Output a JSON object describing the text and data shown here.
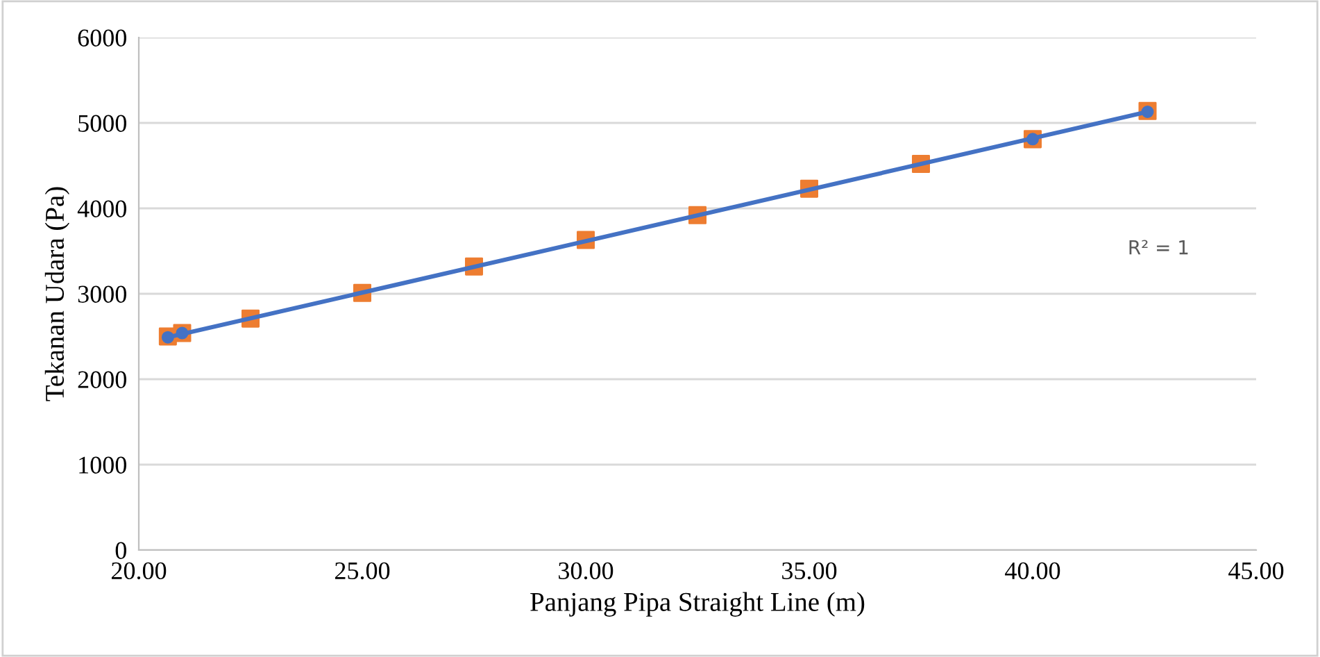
{
  "chart_data": {
    "type": "scatter",
    "xlabel": "Panjang Pipa Straight Line (m)",
    "ylabel": "Tekanan Udara (Pa)",
    "annotations": [
      "R² = 1"
    ],
    "series": [
      {
        "marker": "square",
        "color": "#ed7d31",
        "x": [
          20.65,
          20.97,
          22.5,
          25,
          27.5,
          30,
          32.5,
          35,
          37.5,
          40,
          42.57
        ],
        "values": [
          2500,
          2540,
          2710,
          3010,
          3320,
          3630,
          3920,
          4230,
          4520,
          4810,
          5140
        ]
      },
      {
        "marker": "circle",
        "color": "#4472c4",
        "x": [
          20.65,
          20.97,
          40,
          42.57
        ],
        "values": [
          2490,
          2540,
          4810,
          5130
        ]
      },
      {
        "type": "line",
        "marker": "none",
        "color": "#4472c4",
        "x": [
          20.65,
          42.57
        ],
        "values": [
          2490,
          5130
        ]
      }
    ],
    "xlim": [
      20,
      45
    ],
    "xticks": [
      {
        "value": 20,
        "label": "20.00"
      },
      {
        "value": 25,
        "label": "25.00"
      },
      {
        "value": 30,
        "label": "30.00"
      },
      {
        "value": 35,
        "label": "35.00"
      },
      {
        "value": 40,
        "label": "40.00"
      },
      {
        "value": 45,
        "label": "45.00"
      }
    ],
    "ylim": [
      0,
      6000
    ],
    "yticks": [
      0,
      1000,
      2000,
      3000,
      4000,
      5000,
      6000
    ],
    "grid": "y",
    "legend": false
  }
}
